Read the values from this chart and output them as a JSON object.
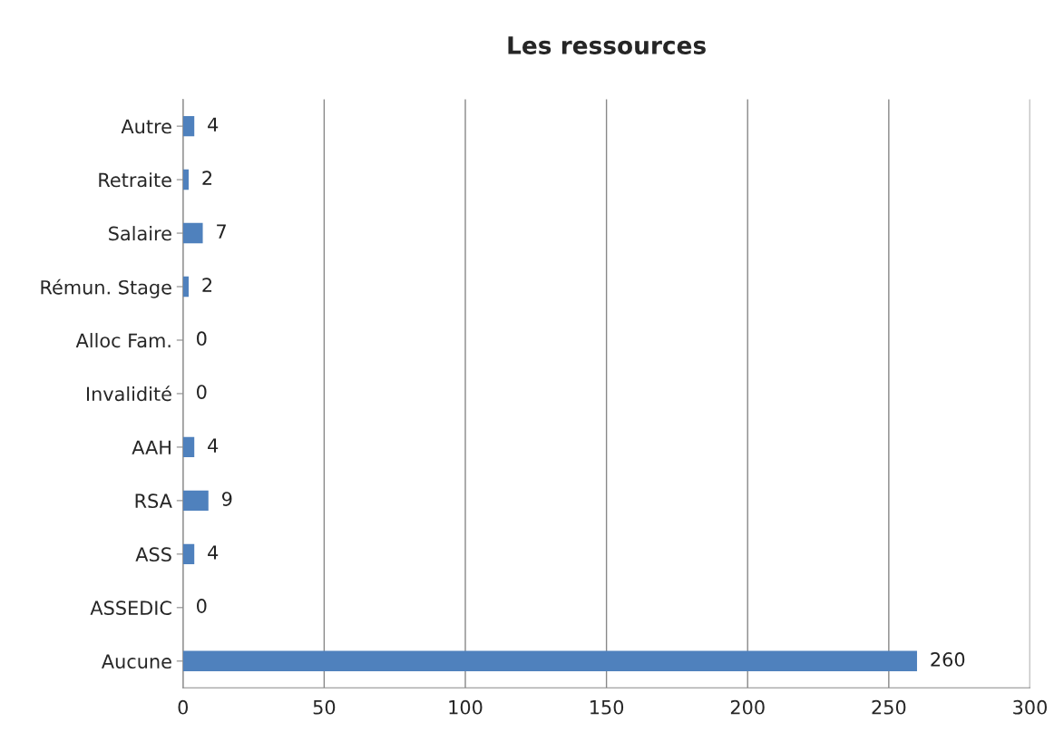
{
  "chart_data": {
    "type": "bar",
    "title": "Les ressources",
    "orientation": "horizontal",
    "categories": [
      "Autre",
      "Retraite",
      "Salaire",
      "Rémun. Stage",
      "Alloc Fam.",
      "Invalidité",
      "AAH",
      "RSA",
      "ASS",
      "ASSEDIC",
      "Aucune"
    ],
    "values": [
      4,
      2,
      7,
      2,
      0,
      0,
      4,
      9,
      4,
      0,
      260
    ],
    "color": "#4f81bd",
    "xlim": [
      0,
      300
    ],
    "xticks": [
      0,
      50,
      100,
      150,
      200,
      250,
      300
    ],
    "grid": "x",
    "data_labels": true
  }
}
